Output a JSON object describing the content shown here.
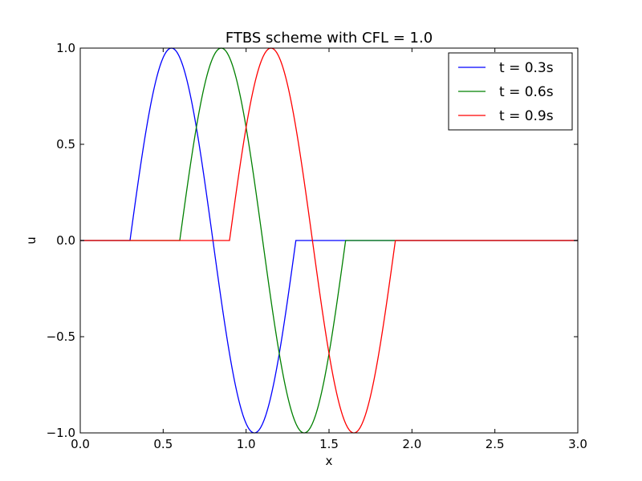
{
  "chart_data": {
    "type": "line",
    "title": "FTBS scheme with CFL = 1.0",
    "xlabel": "x",
    "ylabel": "u",
    "xlim": [
      0.0,
      3.0
    ],
    "ylim": [
      -1.0,
      1.0
    ],
    "xticks": [
      0.0,
      0.5,
      1.0,
      1.5,
      2.0,
      2.5,
      3.0
    ],
    "xtick_labels": [
      "0.0",
      "0.5",
      "1.0",
      "1.5",
      "2.0",
      "2.5",
      "3.0"
    ],
    "yticks": [
      -1.0,
      -0.5,
      0.0,
      0.5,
      1.0
    ],
    "ytick_labels": [
      "−1.0",
      "−0.5",
      "0.0",
      "0.5",
      "1.0"
    ],
    "grid": false,
    "legend_position": "top-right",
    "series": [
      {
        "name": "t = 0.3s",
        "color": "#0000ff",
        "wave_start": 0.3,
        "wave_end": 1.3
      },
      {
        "name": "t = 0.6s",
        "color": "#008000",
        "wave_start": 0.6,
        "wave_end": 1.6
      },
      {
        "name": "t = 0.9s",
        "color": "#ff0000",
        "wave_start": 0.9,
        "wave_end": 1.9
      }
    ]
  }
}
